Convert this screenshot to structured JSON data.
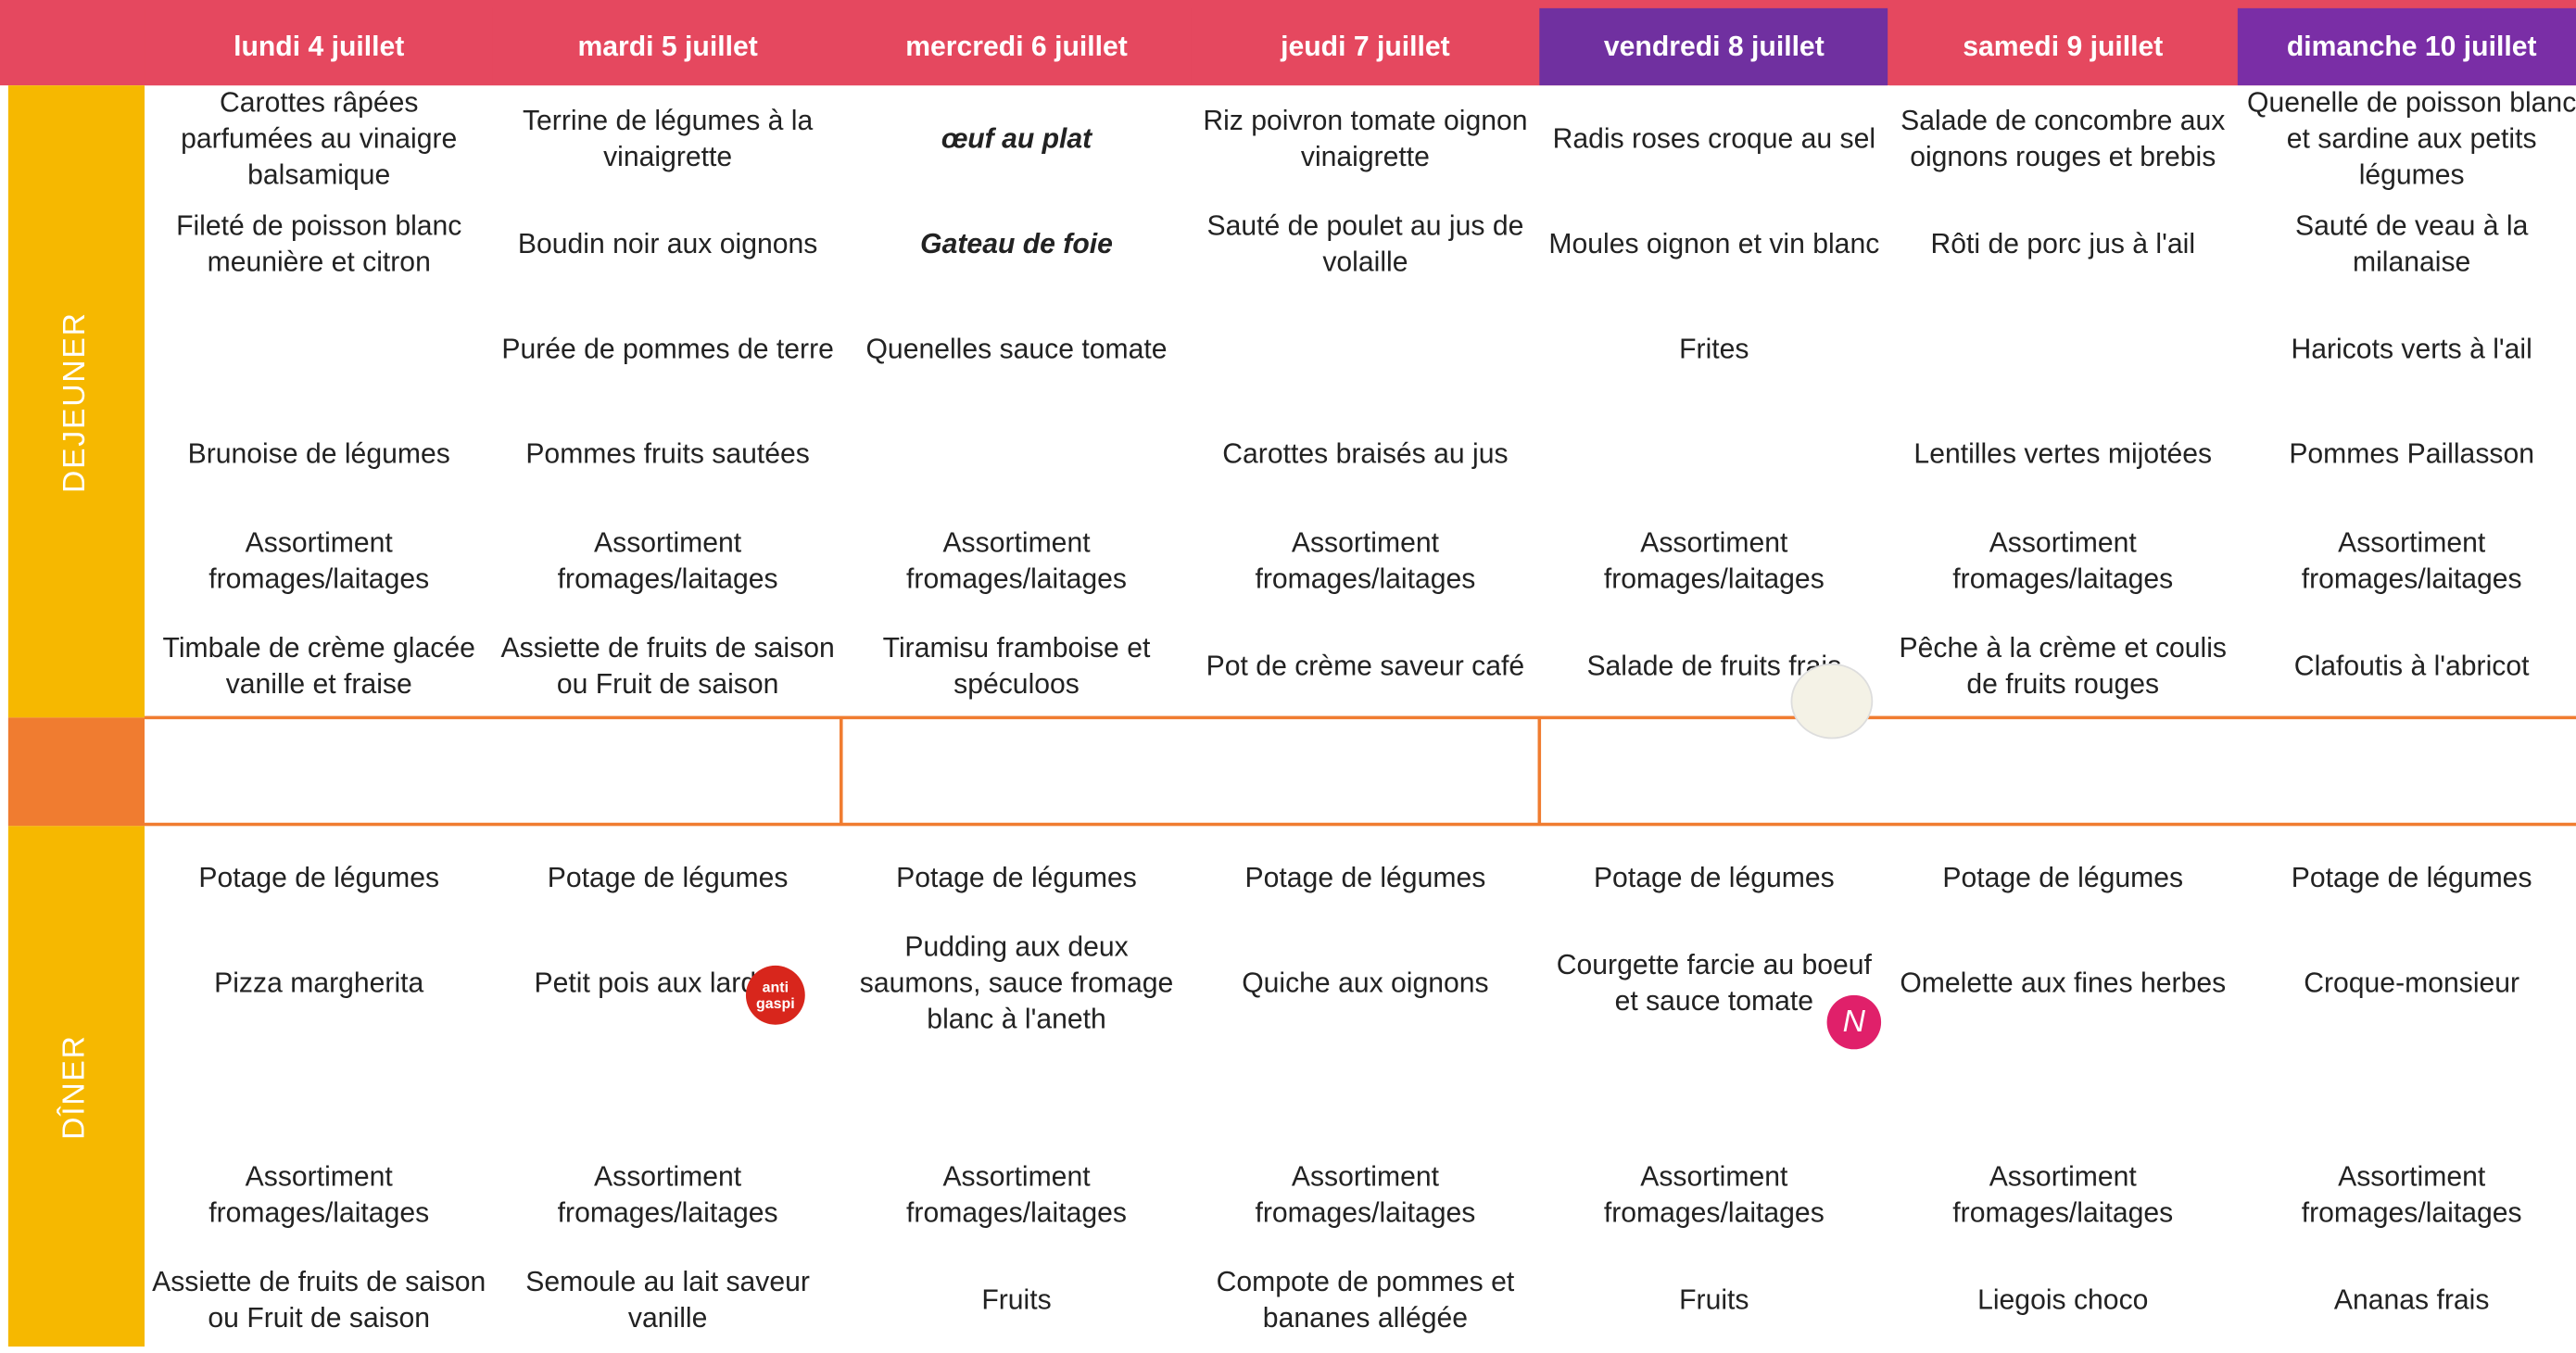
{
  "days": [
    "lundi 4 juillet",
    "mardi 5 juillet",
    "mercredi 6 juillet",
    "jeudi 7 juillet",
    "vendredi 8 juillet",
    "samedi 9 juillet",
    "dimanche 10 juillet"
  ],
  "lunch": {
    "label": "DEJEUNER",
    "rows": [
      [
        "Carottes râpées parfumées au vinaigre balsamique",
        "Terrine de légumes à la vinaigrette",
        "œuf au plat",
        "Riz poivron tomate oignon vinaigrette",
        "Radis roses croque au sel",
        "Salade  de concombre aux oignons rouges et brebis",
        "Quenelle de poisson blanc et sardine aux petits légumes"
      ],
      [
        "Fileté de poisson blanc meunière et citron",
        "Boudin noir aux oignons",
        "Gateau de foie",
        "Sauté de poulet au jus de volaille",
        "Moules oignon et vin blanc",
        "Rôti de porc jus à l'ail",
        "Sauté de veau à la milanaise"
      ],
      [
        null,
        "Purée de pommes de terre",
        "Quenelles sauce tomate",
        null,
        "Frites",
        null,
        "Haricots verts à l'ail"
      ],
      [
        "Brunoise de légumes",
        "Pommes fruits sautées",
        null,
        "Carottes braisés au jus",
        null,
        "Lentilles vertes mijotées",
        "Pommes Paillasson"
      ],
      [
        "Assortiment fromages/laitages",
        "Assortiment fromages/laitages",
        "Assortiment fromages/laitages",
        "Assortiment fromages/laitages",
        "Assortiment fromages/laitages",
        "Assortiment fromages/laitages",
        "Assortiment fromages/laitages"
      ],
      [
        "Timbale de crème glacée vanille et fraise",
        "Assiette de fruits de saison ou Fruit de saison",
        "Tiramisu framboise et spéculoos",
        "Pot de crème saveur café",
        "Salade de fruits frais",
        "Pêche à la crème et coulis de fruits rouges",
        "Clafoutis à l'abricot"
      ]
    ]
  },
  "dinner": {
    "label": "DÎNER",
    "rows": [
      [
        "Potage de légumes",
        "Potage de légumes",
        "Potage de légumes",
        "Potage de légumes",
        "Potage de légumes",
        "Potage de légumes",
        "Potage de légumes"
      ],
      [
        "Pizza margherita",
        "Petit pois aux lardons",
        "Pudding aux deux saumons, sauce fromage blanc à l'aneth",
        "Quiche aux oignons",
        "Courgette farcie au boeuf et sauce tomate",
        "Omelette aux fines herbes",
        "Croque-monsieur"
      ],
      [
        "Assortiment fromages/laitages",
        "Assortiment fromages/laitages",
        "Assortiment fromages/laitages",
        "Assortiment fromages/laitages",
        "Assortiment fromages/laitages",
        "Assortiment fromages/laitages",
        "Assortiment fromages/laitages"
      ],
      [
        "Assiette de fruits de saison ou Fruit de saison",
        "Semoule au lait saveur vanille",
        "Fruits",
        "Compote de pommes et bananes allégée",
        "Fruits",
        "Liegois choco",
        "Ananas frais"
      ]
    ]
  },
  "icons": {
    "anti_gaspi": [
      "anti",
      "gaspi"
    ],
    "logo": "N"
  }
}
